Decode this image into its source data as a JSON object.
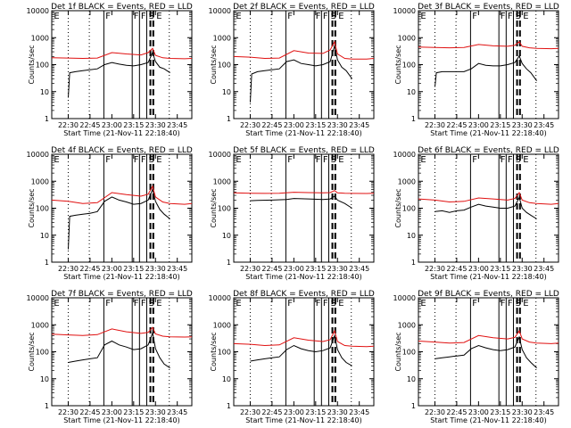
{
  "page": {
    "tick_labels_y": [
      "1",
      "10",
      "100",
      "1000",
      "10000"
    ],
    "tick_labels_x": [
      "22:30",
      "22:45",
      "23:00",
      "23:15",
      "23:30",
      "23:45"
    ],
    "ylabel": "Counts/sec",
    "xlabel": "Start Time (21-Nov-11 22:18:40)",
    "marker_labels": [
      "E",
      "F",
      "F",
      "F",
      "S",
      "E"
    ]
  },
  "chart_data": [
    {
      "type": "line",
      "title": "Det 1f BLACK = Events, RED = LLD",
      "xlabel": "Start Time (21-Nov-11 22:18:40)",
      "ylabel": "Counts/sec",
      "yscale": "log",
      "ylim": [
        1,
        10000
      ],
      "xlim": [
        "22:18:40",
        "23:55"
      ],
      "series": [
        {
          "name": "Events",
          "color": "#000000",
          "x": [
            "22:30",
            "22:31",
            "22:35",
            "22:40",
            "22:45",
            "22:50",
            "22:55",
            "23:00",
            "23:05",
            "23:10",
            "23:15",
            "23:20",
            "23:25",
            "23:28",
            "23:30",
            "23:33",
            "23:36",
            "23:40"
          ],
          "values": [
            6,
            50,
            55,
            60,
            65,
            70,
            100,
            120,
            105,
            95,
            90,
            100,
            120,
            280,
            130,
            80,
            70,
            50
          ]
        },
        {
          "name": "LLD",
          "color": "#e01010",
          "x": [
            "22:18:40",
            "22:30",
            "22:40",
            "22:50",
            "23:00",
            "23:10",
            "23:20",
            "23:25",
            "23:28",
            "23:30",
            "23:35",
            "23:40",
            "23:50",
            "23:55"
          ],
          "values": [
            180,
            175,
            170,
            175,
            280,
            250,
            230,
            280,
            400,
            220,
            180,
            170,
            165,
            170
          ]
        }
      ]
    },
    {
      "type": "line",
      "title": "Det 2f BLACK = Events, RED = LLD",
      "xlabel": "Start Time (21-Nov-11 22:18:40)",
      "ylabel": "Counts/sec",
      "yscale": "log",
      "ylim": [
        1,
        10000
      ],
      "xlim": [
        "22:18:40",
        "23:55"
      ],
      "series": [
        {
          "name": "Events",
          "color": "#000000",
          "x": [
            "22:30",
            "22:31",
            "22:35",
            "22:40",
            "22:45",
            "22:50",
            "22:55",
            "23:00",
            "23:05",
            "23:10",
            "23:15",
            "23:20",
            "23:25",
            "23:28",
            "23:30",
            "23:33",
            "23:36",
            "23:40"
          ],
          "values": [
            4,
            45,
            55,
            60,
            65,
            70,
            130,
            150,
            110,
            100,
            90,
            100,
            130,
            500,
            150,
            80,
            60,
            30
          ]
        },
        {
          "name": "LLD",
          "color": "#e01010",
          "x": [
            "22:18:40",
            "22:30",
            "22:40",
            "22:50",
            "23:00",
            "23:10",
            "23:20",
            "23:25",
            "23:28",
            "23:30",
            "23:35",
            "23:40",
            "23:50",
            "23:55"
          ],
          "values": [
            200,
            190,
            170,
            175,
            330,
            270,
            260,
            350,
            700,
            250,
            170,
            160,
            160,
            170
          ]
        }
      ]
    },
    {
      "type": "line",
      "title": "Det 3f BLACK = Events, RED = LLD",
      "xlabel": "Start Time (21-Nov-11 22:18:40)",
      "ylabel": "Counts/sec",
      "yscale": "log",
      "ylim": [
        1,
        10000
      ],
      "xlim": [
        "22:18:40",
        "23:55"
      ],
      "series": [
        {
          "name": "Events",
          "color": "#000000",
          "x": [
            "22:30",
            "22:31",
            "22:35",
            "22:40",
            "22:45",
            "22:50",
            "22:55",
            "23:00",
            "23:05",
            "23:10",
            "23:15",
            "23:20",
            "23:25",
            "23:28",
            "23:30",
            "23:33",
            "23:36",
            "23:40"
          ],
          "values": [
            15,
            50,
            55,
            55,
            55,
            55,
            70,
            110,
            95,
            90,
            90,
            100,
            120,
            210,
            110,
            70,
            50,
            25
          ]
        },
        {
          "name": "LLD",
          "color": "#e01010",
          "x": [
            "22:18:40",
            "22:30",
            "22:40",
            "22:50",
            "23:00",
            "23:10",
            "23:20",
            "23:25",
            "23:28",
            "23:30",
            "23:35",
            "23:40",
            "23:50",
            "23:55"
          ],
          "values": [
            450,
            430,
            420,
            430,
            560,
            500,
            480,
            520,
            700,
            480,
            420,
            400,
            390,
            400
          ]
        }
      ]
    },
    {
      "type": "line",
      "title": "Det 4f BLACK = Events, RED = LLD",
      "xlabel": "Start Time (21-Nov-11 22:18:40)",
      "ylabel": "Counts/sec",
      "yscale": "log",
      "ylim": [
        1,
        10000
      ],
      "xlim": [
        "22:18:40",
        "23:55"
      ],
      "series": [
        {
          "name": "Events",
          "color": "#000000",
          "x": [
            "22:30",
            "22:31",
            "22:35",
            "22:40",
            "22:45",
            "22:50",
            "22:55",
            "23:00",
            "23:05",
            "23:10",
            "23:15",
            "23:20",
            "23:25",
            "23:28",
            "23:30",
            "23:33",
            "23:36",
            "23:40"
          ],
          "values": [
            3,
            50,
            55,
            60,
            65,
            75,
            180,
            260,
            200,
            170,
            140,
            150,
            200,
            500,
            180,
            90,
            60,
            40
          ]
        },
        {
          "name": "LLD",
          "color": "#e01010",
          "x": [
            "22:18:40",
            "22:30",
            "22:40",
            "22:50",
            "23:00",
            "23:10",
            "23:20",
            "23:25",
            "23:28",
            "23:30",
            "23:35",
            "23:40",
            "23:50",
            "23:55"
          ],
          "values": [
            200,
            180,
            150,
            160,
            380,
            320,
            280,
            330,
            650,
            260,
            170,
            150,
            140,
            150
          ]
        }
      ]
    },
    {
      "type": "line",
      "title": "Det 5f BLACK = Events, RED = LLD",
      "xlabel": "Start Time (21-Nov-11 22:18:40)",
      "ylabel": "Counts/sec",
      "yscale": "log",
      "ylim": [
        1,
        10000
      ],
      "xlim": [
        "22:18:40",
        "23:55"
      ],
      "series": [
        {
          "name": "Events",
          "color": "#000000",
          "x": [
            "22:30",
            "22:35",
            "22:45",
            "22:55",
            "23:00",
            "23:10",
            "23:20",
            "23:25",
            "23:28",
            "23:30",
            "23:35",
            "23:40"
          ],
          "values": [
            190,
            195,
            200,
            210,
            230,
            220,
            210,
            220,
            280,
            200,
            150,
            100
          ]
        },
        {
          "name": "LLD",
          "color": "#e01010",
          "x": [
            "22:18:40",
            "22:30",
            "22:40",
            "22:50",
            "23:00",
            "23:10",
            "23:20",
            "23:25",
            "23:28",
            "23:30",
            "23:35",
            "23:40",
            "23:50",
            "23:55"
          ],
          "values": [
            370,
            360,
            355,
            360,
            390,
            380,
            370,
            380,
            450,
            370,
            360,
            355,
            350,
            360
          ]
        }
      ]
    },
    {
      "type": "line",
      "title": "Det 6f BLACK = Events, RED = LLD",
      "xlabel": "Start Time (21-Nov-11 22:18:40)",
      "ylabel": "Counts/sec",
      "yscale": "log",
      "ylim": [
        1,
        10000
      ],
      "xlim": [
        "22:18:40",
        "23:55"
      ],
      "series": [
        {
          "name": "Events",
          "color": "#000000",
          "x": [
            "22:30",
            "22:35",
            "22:40",
            "22:45",
            "22:50",
            "22:55",
            "23:00",
            "23:05",
            "23:10",
            "23:15",
            "23:20",
            "23:25",
            "23:28",
            "23:30",
            "23:33",
            "23:36",
            "23:40"
          ],
          "values": [
            75,
            80,
            70,
            80,
            85,
            110,
            140,
            120,
            110,
            100,
            100,
            120,
            250,
            100,
            70,
            55,
            40
          ]
        },
        {
          "name": "LLD",
          "color": "#e01010",
          "x": [
            "22:18:40",
            "22:30",
            "22:40",
            "22:50",
            "23:00",
            "23:10",
            "23:20",
            "23:25",
            "23:28",
            "23:30",
            "23:35",
            "23:40",
            "23:50",
            "23:55"
          ],
          "values": [
            220,
            200,
            170,
            180,
            240,
            220,
            200,
            230,
            380,
            200,
            160,
            150,
            140,
            150
          ]
        }
      ]
    },
    {
      "type": "line",
      "title": "Det 7f BLACK = Events, RED = LLD",
      "xlabel": "Start Time (21-Nov-11 22:18:40)",
      "ylabel": "Counts/sec",
      "yscale": "log",
      "ylim": [
        1,
        10000
      ],
      "xlim": [
        "22:18:40",
        "23:55"
      ],
      "series": [
        {
          "name": "Events",
          "color": "#000000",
          "x": [
            "22:30",
            "22:35",
            "22:40",
            "22:45",
            "22:50",
            "22:55",
            "23:00",
            "23:05",
            "23:10",
            "23:15",
            "23:20",
            "23:25",
            "23:28",
            "23:30",
            "23:33",
            "23:36",
            "23:40"
          ],
          "values": [
            40,
            45,
            50,
            55,
            60,
            180,
            250,
            180,
            150,
            120,
            130,
            180,
            500,
            130,
            60,
            35,
            25
          ]
        },
        {
          "name": "LLD",
          "color": "#e01010",
          "x": [
            "22:18:40",
            "22:30",
            "22:40",
            "22:50",
            "23:00",
            "23:10",
            "23:20",
            "23:25",
            "23:28",
            "23:30",
            "23:35",
            "23:40",
            "23:50",
            "23:55"
          ],
          "values": [
            450,
            420,
            400,
            430,
            700,
            550,
            480,
            520,
            800,
            460,
            380,
            360,
            350,
            360
          ]
        }
      ]
    },
    {
      "type": "line",
      "title": "Det 8f BLACK = Events, RED = LLD",
      "xlabel": "Start Time (21-Nov-11 22:18:40)",
      "ylabel": "Counts/sec",
      "yscale": "log",
      "ylim": [
        1,
        10000
      ],
      "xlim": [
        "22:18:40",
        "23:55"
      ],
      "series": [
        {
          "name": "Events",
          "color": "#000000",
          "x": [
            "22:30",
            "22:35",
            "22:40",
            "22:45",
            "22:50",
            "22:55",
            "23:00",
            "23:05",
            "23:10",
            "23:15",
            "23:20",
            "23:25",
            "23:28",
            "23:30",
            "23:33",
            "23:36",
            "23:40"
          ],
          "values": [
            45,
            50,
            55,
            60,
            65,
            120,
            170,
            130,
            110,
            100,
            110,
            140,
            400,
            120,
            60,
            40,
            30
          ]
        },
        {
          "name": "LLD",
          "color": "#e01010",
          "x": [
            "22:18:40",
            "22:30",
            "22:40",
            "22:50",
            "23:00",
            "23:10",
            "23:20",
            "23:25",
            "23:28",
            "23:30",
            "23:35",
            "23:40",
            "23:50",
            "23:55"
          ],
          "values": [
            200,
            190,
            170,
            180,
            330,
            270,
            240,
            280,
            600,
            240,
            170,
            160,
            155,
            160
          ]
        }
      ]
    },
    {
      "type": "line",
      "title": "Det 9f BLACK = Events, RED = LLD",
      "xlabel": "Start Time (21-Nov-11 22:18:40)",
      "ylabel": "Counts/sec",
      "yscale": "log",
      "ylim": [
        1,
        10000
      ],
      "xlim": [
        "22:18:40",
        "23:55"
      ],
      "series": [
        {
          "name": "Events",
          "color": "#000000",
          "x": [
            "22:30",
            "22:35",
            "22:40",
            "22:45",
            "22:50",
            "22:55",
            "23:00",
            "23:05",
            "23:10",
            "23:15",
            "23:20",
            "23:25",
            "23:28",
            "23:30",
            "23:33",
            "23:36",
            "23:40"
          ],
          "values": [
            55,
            60,
            65,
            70,
            75,
            130,
            170,
            140,
            120,
            110,
            120,
            150,
            350,
            120,
            60,
            40,
            25
          ]
        },
        {
          "name": "LLD",
          "color": "#e01010",
          "x": [
            "22:18:40",
            "22:30",
            "22:40",
            "22:50",
            "23:00",
            "23:10",
            "23:20",
            "23:25",
            "23:28",
            "23:30",
            "23:35",
            "23:40",
            "23:50",
            "23:55"
          ],
          "values": [
            250,
            230,
            210,
            220,
            400,
            330,
            300,
            340,
            600,
            300,
            230,
            210,
            200,
            210
          ]
        }
      ]
    }
  ]
}
